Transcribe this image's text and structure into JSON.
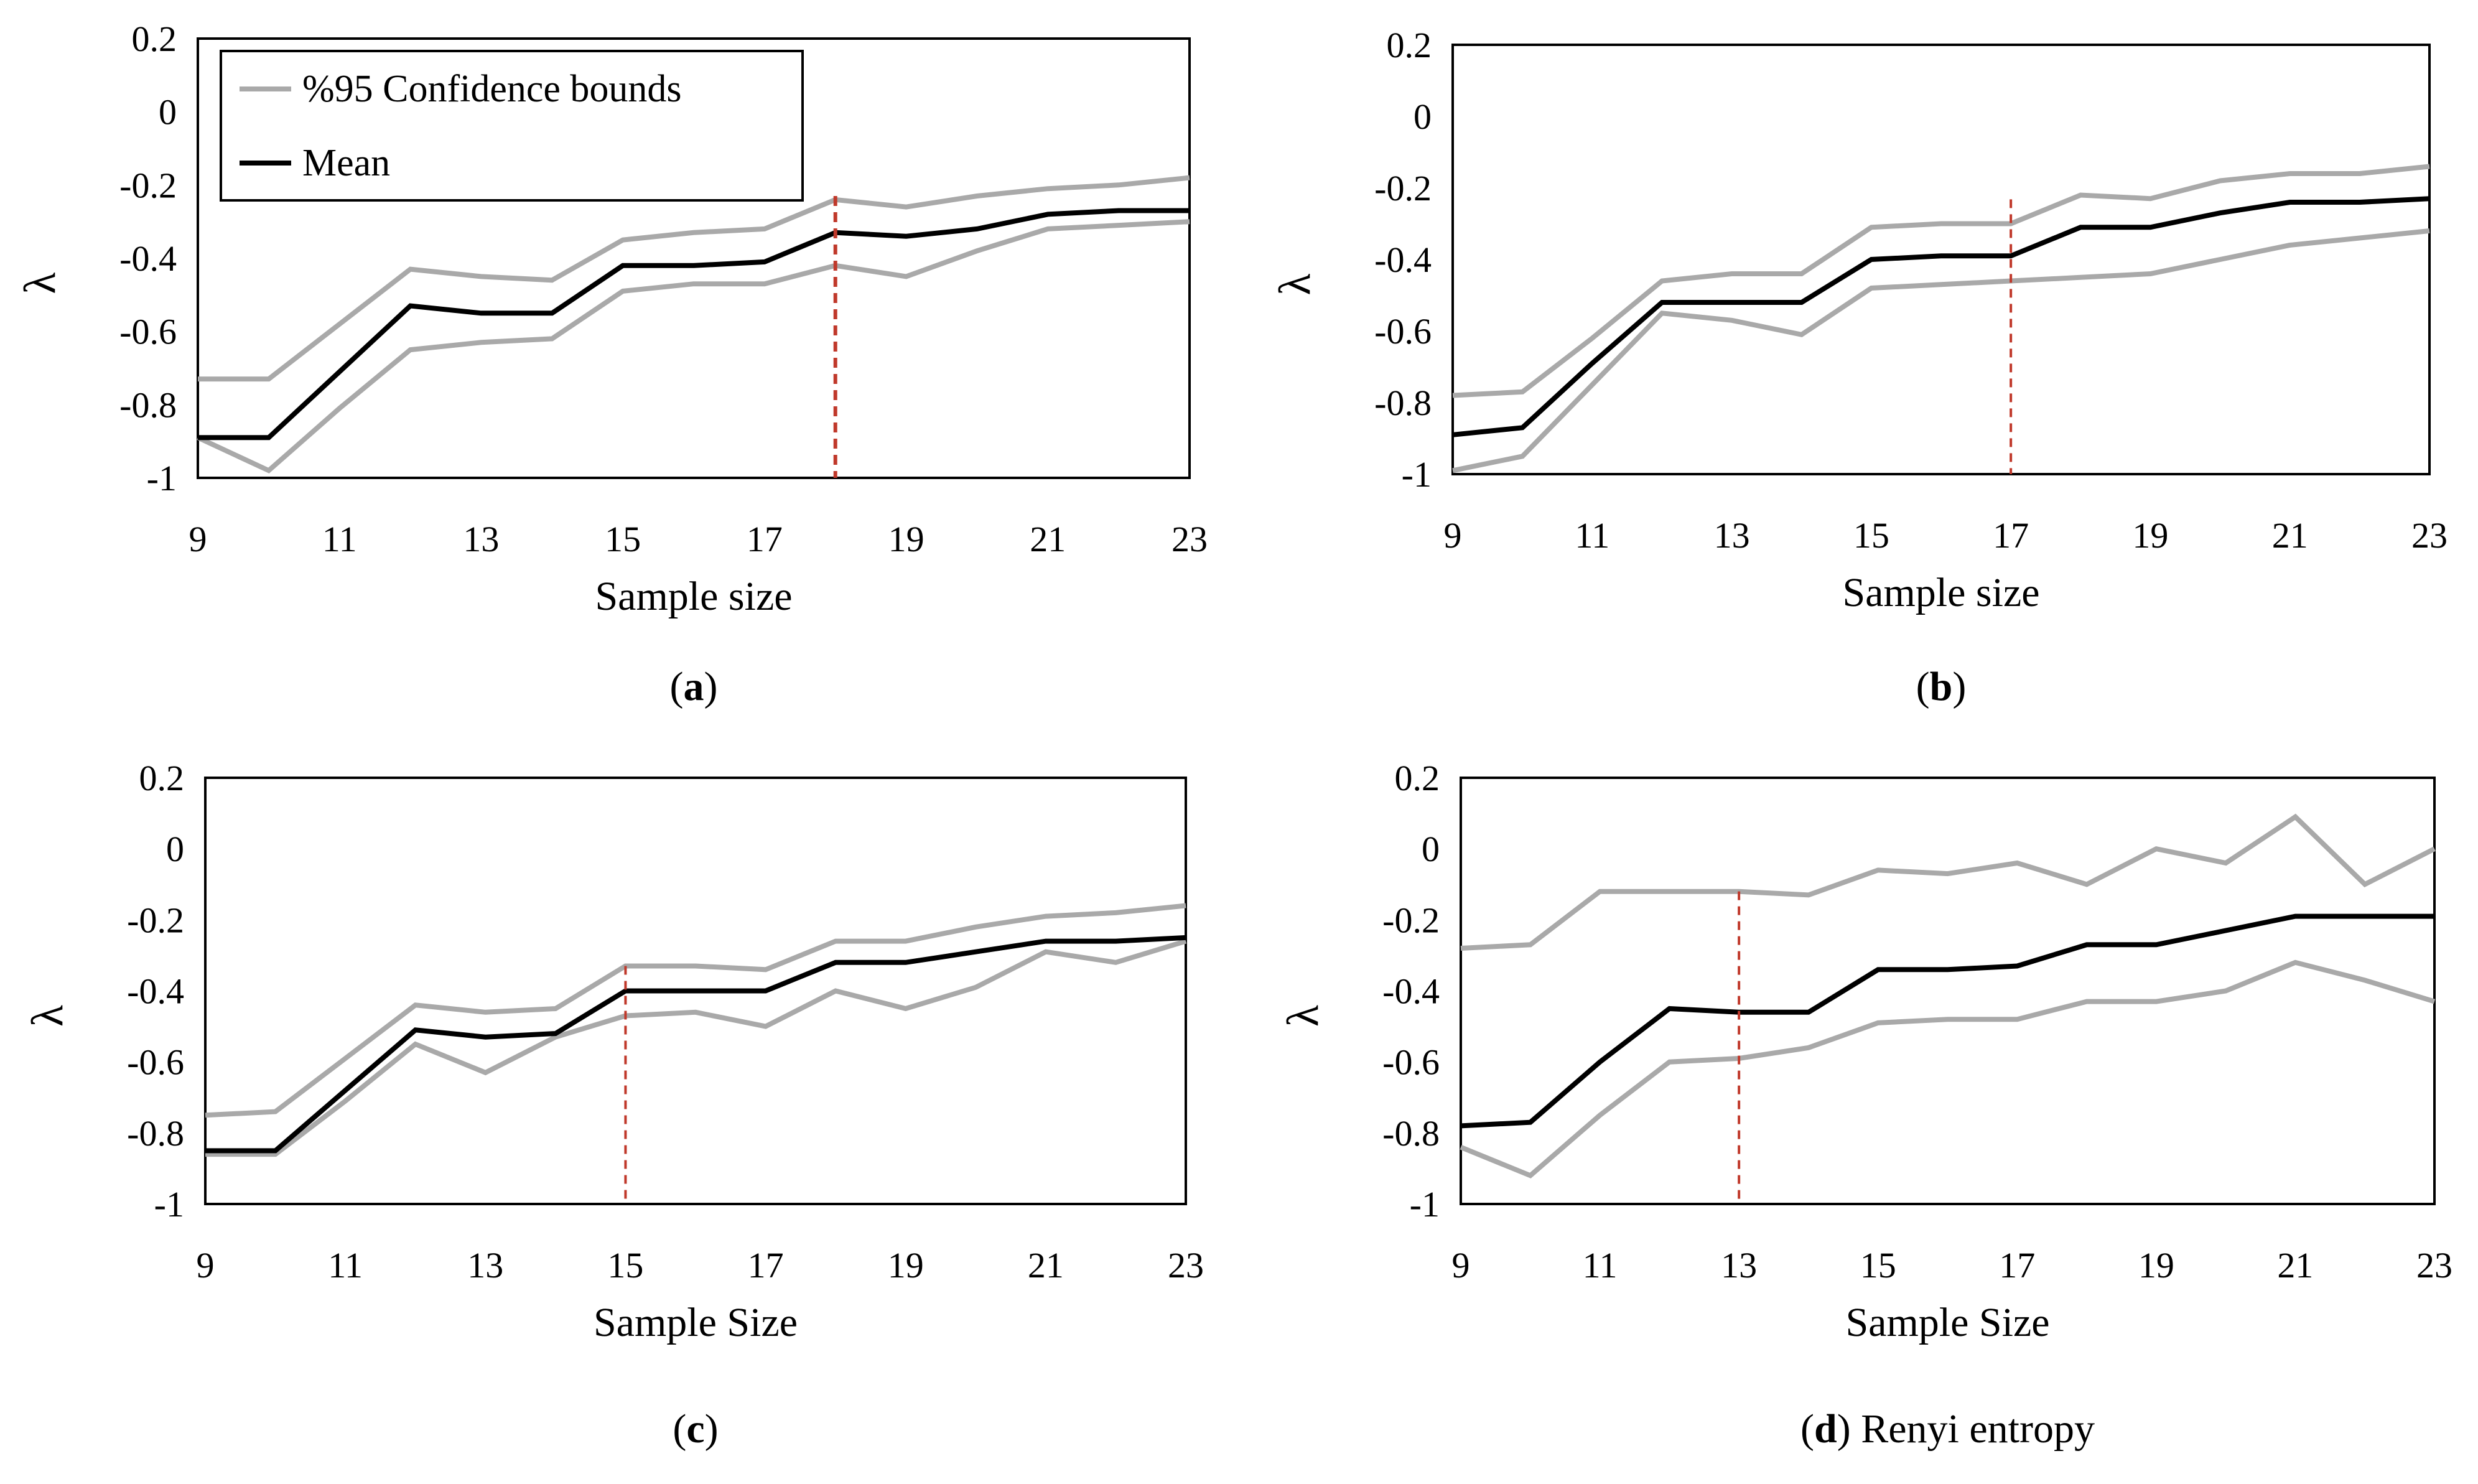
{
  "colors": {
    "mean": "#000000",
    "bounds": "#a9a9a9",
    "marker": "#c0392b",
    "frame": "#000000"
  },
  "legend": {
    "bounds_label": "%95 Confidence bounds",
    "mean_label": "Mean"
  },
  "chart_data": [
    {
      "type": "line",
      "caption_letter": "a",
      "caption_rest": "",
      "xlabel": "Sample size",
      "ylabel": "λ",
      "xlim": [
        9,
        23
      ],
      "ylim": [
        -1,
        0.2
      ],
      "xticks": [
        "9",
        "11",
        "13",
        "15",
        "17",
        "19",
        "21",
        "23"
      ],
      "yticks": [
        "0.2",
        "0",
        "-0.2",
        "-0.4",
        "-0.6",
        "-0.8",
        "-1"
      ],
      "marker_x": 18,
      "marker_style": "heavy",
      "legend": true,
      "x": [
        9,
        10,
        11,
        12,
        13,
        14,
        15,
        16,
        17,
        18,
        19,
        20,
        21,
        22,
        23
      ],
      "series": [
        {
          "name": "%95 Confidence bounds (upper)",
          "role": "bounds",
          "values": [
            -0.73,
            -0.73,
            -0.58,
            -0.43,
            -0.45,
            -0.46,
            -0.35,
            -0.33,
            -0.32,
            -0.24,
            -0.26,
            -0.23,
            -0.21,
            -0.2,
            -0.18
          ]
        },
        {
          "name": "%95 Confidence bounds (lower)",
          "role": "bounds",
          "values": [
            -0.89,
            -0.98,
            -0.81,
            -0.65,
            -0.63,
            -0.62,
            -0.49,
            -0.47,
            -0.47,
            -0.42,
            -0.45,
            -0.38,
            -0.32,
            -0.31,
            -0.3
          ]
        },
        {
          "name": "Mean",
          "role": "mean",
          "values": [
            -0.89,
            -0.89,
            -0.71,
            -0.53,
            -0.55,
            -0.55,
            -0.42,
            -0.42,
            -0.41,
            -0.33,
            -0.34,
            -0.32,
            -0.28,
            -0.27,
            -0.27
          ]
        }
      ]
    },
    {
      "type": "line",
      "caption_letter": "b",
      "caption_rest": "",
      "xlabel": "Sample size",
      "ylabel": "λ",
      "xlim": [
        9,
        23
      ],
      "ylim": [
        -1,
        0.2
      ],
      "xticks": [
        "9",
        "11",
        "13",
        "15",
        "17",
        "19",
        "21",
        "23"
      ],
      "yticks": [
        "0.2",
        "0",
        "-0.2",
        "-0.4",
        "-0.6",
        "-0.8",
        "-1"
      ],
      "marker_x": 17,
      "marker_style": "thin",
      "legend": false,
      "x": [
        9,
        10,
        11,
        12,
        13,
        14,
        15,
        16,
        17,
        18,
        19,
        20,
        21,
        22,
        23
      ],
      "series": [
        {
          "name": "%95 Confidence bounds (upper)",
          "role": "bounds",
          "values": [
            -0.78,
            -0.77,
            -0.62,
            -0.46,
            -0.44,
            -0.44,
            -0.31,
            -0.3,
            -0.3,
            -0.22,
            -0.23,
            -0.18,
            -0.16,
            -0.16,
            -0.14
          ]
        },
        {
          "name": "%95 Confidence bounds (lower)",
          "role": "bounds",
          "values": [
            -0.99,
            -0.95,
            -0.75,
            -0.55,
            -0.57,
            -0.61,
            -0.48,
            -0.47,
            -0.46,
            -0.45,
            -0.44,
            -0.4,
            -0.36,
            -0.34,
            -0.32
          ]
        },
        {
          "name": "Mean",
          "role": "mean",
          "values": [
            -0.89,
            -0.87,
            -0.69,
            -0.52,
            -0.52,
            -0.52,
            -0.4,
            -0.39,
            -0.39,
            -0.31,
            -0.31,
            -0.27,
            -0.24,
            -0.24,
            -0.23
          ]
        }
      ]
    },
    {
      "type": "line",
      "caption_letter": "c",
      "caption_rest": "",
      "xlabel": "Sample Size",
      "ylabel": "λ",
      "xlim": [
        9,
        23
      ],
      "ylim": [
        -1,
        0.2
      ],
      "xticks": [
        "9",
        "11",
        "13",
        "15",
        "17",
        "19",
        "21",
        "23"
      ],
      "yticks": [
        "0.2",
        "0",
        "-0.2",
        "-0.4",
        "-0.6",
        "-0.8",
        "-1"
      ],
      "marker_x": 15,
      "marker_style": "thin",
      "legend": false,
      "x": [
        9,
        10,
        11,
        12,
        13,
        14,
        15,
        16,
        17,
        18,
        19,
        20,
        21,
        22,
        23
      ],
      "series": [
        {
          "name": "%95 Confidence bounds (upper)",
          "role": "bounds",
          "values": [
            -0.75,
            -0.74,
            -0.59,
            -0.44,
            -0.46,
            -0.45,
            -0.33,
            -0.33,
            -0.34,
            -0.26,
            -0.26,
            -0.22,
            -0.19,
            -0.18,
            -0.16
          ]
        },
        {
          "name": "%95 Confidence bounds (lower)",
          "role": "bounds",
          "values": [
            -0.86,
            -0.86,
            -0.71,
            -0.55,
            -0.63,
            -0.53,
            -0.47,
            -0.46,
            -0.5,
            -0.4,
            -0.45,
            -0.39,
            -0.29,
            -0.32,
            -0.26
          ]
        },
        {
          "name": "Mean",
          "role": "mean",
          "values": [
            -0.85,
            -0.85,
            -0.68,
            -0.51,
            -0.53,
            -0.52,
            -0.4,
            -0.4,
            -0.4,
            -0.32,
            -0.32,
            -0.29,
            -0.26,
            -0.26,
            -0.25
          ]
        }
      ]
    },
    {
      "type": "line",
      "caption_letter": "d",
      "caption_rest": " Renyi entropy",
      "xlabel": "Sample Size",
      "ylabel": "λ",
      "xlim": [
        9,
        23
      ],
      "ylim": [
        -1,
        0.2
      ],
      "xticks": [
        "9",
        "11",
        "13",
        "15",
        "17",
        "19",
        "21",
        "23"
      ],
      "yticks": [
        "0.2",
        "0",
        "-0.2",
        "-0.4",
        "-0.6",
        "-0.8",
        "-1"
      ],
      "marker_x": 13,
      "marker_style": "thin",
      "legend": false,
      "x": [
        9,
        10,
        11,
        12,
        13,
        14,
        15,
        16,
        17,
        18,
        19,
        20,
        21,
        22,
        23
      ],
      "series": [
        {
          "name": "%95 Confidence bounds (upper)",
          "role": "bounds",
          "values": [
            -0.28,
            -0.27,
            -0.12,
            -0.12,
            -0.12,
            -0.13,
            -0.06,
            -0.07,
            -0.04,
            -0.1,
            0,
            -0.04,
            0.09,
            -0.1,
            0
          ]
        },
        {
          "name": "%95 Confidence bounds (lower)",
          "role": "bounds",
          "values": [
            -0.84,
            -0.92,
            -0.75,
            -0.6,
            -0.59,
            -0.56,
            -0.49,
            -0.48,
            -0.48,
            -0.43,
            -0.43,
            -0.4,
            -0.32,
            -0.37,
            -0.43
          ]
        },
        {
          "name": "Mean",
          "role": "mean",
          "values": [
            -0.78,
            -0.77,
            -0.6,
            -0.45,
            -0.46,
            -0.46,
            -0.34,
            -0.34,
            -0.33,
            -0.27,
            -0.27,
            -0.23,
            -0.19,
            -0.19,
            -0.19
          ]
        }
      ]
    }
  ]
}
